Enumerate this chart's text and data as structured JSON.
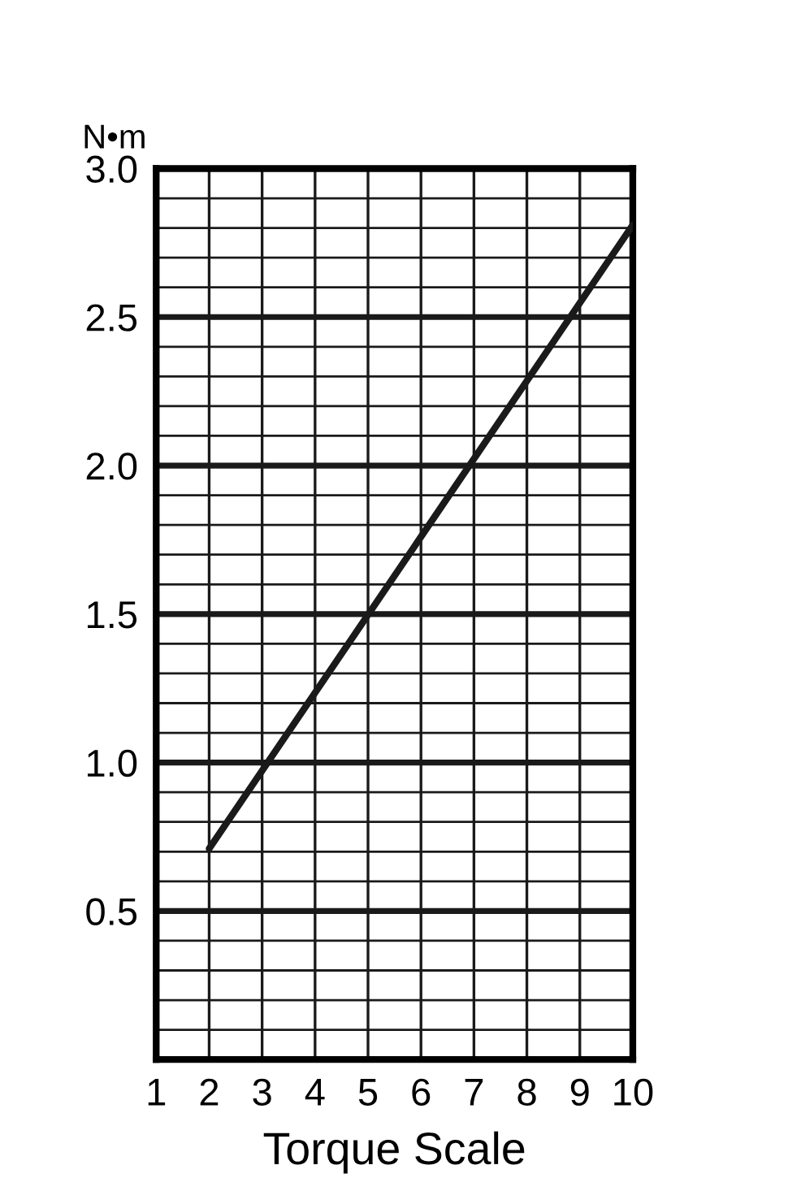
{
  "chart_data": {
    "type": "line",
    "xlabel": "Torque Scale",
    "ylabel": "N•m",
    "x": [
      2,
      10
    ],
    "series": [
      {
        "color": "#1a1a1a",
        "values": [
          0.71,
          2.81
        ]
      }
    ],
    "xlim": [
      1,
      10
    ],
    "xticks": [
      1,
      2,
      3,
      4,
      5,
      6,
      7,
      8,
      9,
      10
    ],
    "ylim": [
      0,
      3.0
    ],
    "yticks": [
      {
        "value": 0.1,
        "label": null
      },
      {
        "value": 0.2,
        "label": null
      },
      {
        "value": 0.3,
        "label": null
      },
      {
        "value": 0.4,
        "label": null
      },
      {
        "value": 0.5,
        "label": "0.5"
      },
      {
        "value": 0.6,
        "label": null
      },
      {
        "value": 0.7,
        "label": null
      },
      {
        "value": 0.8,
        "label": null
      },
      {
        "value": 0.9,
        "label": null
      },
      {
        "value": 1.0,
        "label": "1.0"
      },
      {
        "value": 1.1,
        "label": null
      },
      {
        "value": 1.2,
        "label": null
      },
      {
        "value": 1.3,
        "label": null
      },
      {
        "value": 1.4,
        "label": null
      },
      {
        "value": 1.5,
        "label": "1.5"
      },
      {
        "value": 1.6,
        "label": null
      },
      {
        "value": 1.7,
        "label": null
      },
      {
        "value": 1.8,
        "label": null
      },
      {
        "value": 1.9,
        "label": null
      },
      {
        "value": 2.0,
        "label": "2.0"
      },
      {
        "value": 2.1,
        "label": null
      },
      {
        "value": 2.2,
        "label": null
      },
      {
        "value": 2.3,
        "label": null
      },
      {
        "value": 2.4,
        "label": null
      },
      {
        "value": 2.5,
        "label": "2.5"
      },
      {
        "value": 2.6,
        "label": null
      },
      {
        "value": 2.7,
        "label": null
      },
      {
        "value": 2.8,
        "label": null
      },
      {
        "value": 2.9,
        "label": null
      },
      {
        "value": 3.0,
        "label": "3.0"
      }
    ],
    "grid": true,
    "line_style": "solid"
  }
}
